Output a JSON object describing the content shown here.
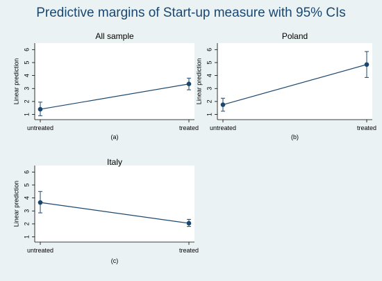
{
  "title": "Predictive margins of Start-up measure with 95% CIs",
  "colors": {
    "background": "#eaf2f3",
    "plot_area": "#ffffff",
    "series": "#1a476f",
    "text": "#000000"
  },
  "chart_data": [
    {
      "type": "line",
      "title": "All sample",
      "caption": "(a)",
      "ylabel": "Linear prediction",
      "xlabel": "",
      "categories": [
        "untreated",
        "treated"
      ],
      "yticks": [
        1,
        2,
        3,
        4,
        5,
        6
      ],
      "ylim": [
        0.6,
        6.5
      ],
      "grid": false,
      "series": [
        {
          "values": [
            1.4,
            3.35
          ],
          "ci_low": [
            0.9,
            2.9
          ],
          "ci_high": [
            1.95,
            3.8
          ]
        }
      ]
    },
    {
      "type": "line",
      "title": "Poland",
      "caption": "(b)",
      "ylabel": "Linear prediction",
      "xlabel": "",
      "categories": [
        "untreated",
        "treated"
      ],
      "yticks": [
        1,
        2,
        3,
        4,
        5,
        6
      ],
      "ylim": [
        0.6,
        6.5
      ],
      "grid": false,
      "series": [
        {
          "values": [
            1.75,
            4.85
          ],
          "ci_low": [
            1.25,
            3.85
          ],
          "ci_high": [
            2.25,
            5.85
          ]
        }
      ]
    },
    {
      "type": "line",
      "title": "Italy",
      "caption": "(c)",
      "ylabel": "Linear prediction",
      "xlabel": "",
      "categories": [
        "untreated",
        "treated"
      ],
      "yticks": [
        1,
        2,
        3,
        4,
        5,
        6
      ],
      "ylim": [
        0.6,
        6.5
      ],
      "grid": false,
      "series": [
        {
          "values": [
            3.65,
            2.05
          ],
          "ci_low": [
            2.85,
            1.8
          ],
          "ci_high": [
            4.5,
            2.35
          ]
        }
      ]
    }
  ]
}
